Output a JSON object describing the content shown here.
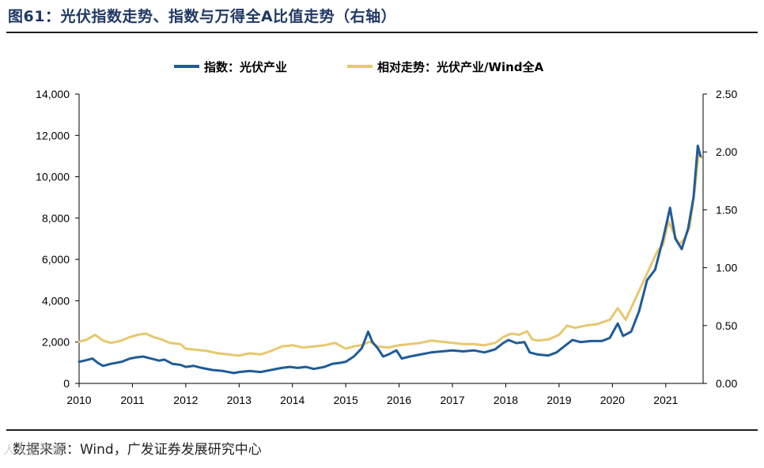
{
  "header": {
    "title": "图61：光伏指数走势、指数与万得全A比值走势（右轴）"
  },
  "footer": {
    "source": "数据来源：Wind，广发证券发展研究中心",
    "watermark": "人人股号查"
  },
  "colors": {
    "series_index": "#1f5c99",
    "series_relative": "#e6c86e",
    "axis": "#000000"
  },
  "chart_data": {
    "type": "line",
    "title": "光伏指数走势、指数与万得全A比值走势（右轴）",
    "legend_position": "top-center",
    "x_range": [
      2010.0,
      2021.7
    ],
    "x_ticks": [
      "2010",
      "2011",
      "2012",
      "2013",
      "2014",
      "2015",
      "2016",
      "2017",
      "2018",
      "2019",
      "2020",
      "2021"
    ],
    "y_left": {
      "range": [
        0,
        14000
      ],
      "ticks": [
        "0",
        "2,000",
        "4,000",
        "6,000",
        "8,000",
        "10,000",
        "12,000",
        "14,000"
      ]
    },
    "y_right": {
      "range": [
        0,
        2.5
      ],
      "ticks": [
        "0.00",
        "0.50",
        "1.00",
        "1.50",
        "2.00",
        "2.50"
      ]
    },
    "series": [
      {
        "name": "指数：光伏产业",
        "axis": "left",
        "points": [
          [
            2010.0,
            1050
          ],
          [
            2010.1,
            1100
          ],
          [
            2010.25,
            1200
          ],
          [
            2010.35,
            1000
          ],
          [
            2010.45,
            850
          ],
          [
            2010.6,
            950
          ],
          [
            2010.8,
            1050
          ],
          [
            2010.95,
            1200
          ],
          [
            2011.05,
            1250
          ],
          [
            2011.2,
            1300
          ],
          [
            2011.35,
            1200
          ],
          [
            2011.5,
            1100
          ],
          [
            2011.6,
            1150
          ],
          [
            2011.75,
            950
          ],
          [
            2011.9,
            900
          ],
          [
            2012.0,
            800
          ],
          [
            2012.15,
            850
          ],
          [
            2012.3,
            750
          ],
          [
            2012.5,
            650
          ],
          [
            2012.7,
            600
          ],
          [
            2012.9,
            500
          ],
          [
            2013.0,
            550
          ],
          [
            2013.2,
            600
          ],
          [
            2013.4,
            550
          ],
          [
            2013.6,
            650
          ],
          [
            2013.8,
            750
          ],
          [
            2013.95,
            800
          ],
          [
            2014.1,
            750
          ],
          [
            2014.25,
            800
          ],
          [
            2014.4,
            700
          ],
          [
            2014.6,
            800
          ],
          [
            2014.75,
            950
          ],
          [
            2014.9,
            1000
          ],
          [
            2015.0,
            1050
          ],
          [
            2015.15,
            1300
          ],
          [
            2015.3,
            1700
          ],
          [
            2015.42,
            2500
          ],
          [
            2015.5,
            2000
          ],
          [
            2015.6,
            1700
          ],
          [
            2015.7,
            1300
          ],
          [
            2015.8,
            1400
          ],
          [
            2015.95,
            1600
          ],
          [
            2016.05,
            1200
          ],
          [
            2016.2,
            1300
          ],
          [
            2016.4,
            1400
          ],
          [
            2016.6,
            1500
          ],
          [
            2016.8,
            1550
          ],
          [
            2017.0,
            1600
          ],
          [
            2017.2,
            1550
          ],
          [
            2017.4,
            1600
          ],
          [
            2017.6,
            1500
          ],
          [
            2017.8,
            1650
          ],
          [
            2017.95,
            1950
          ],
          [
            2018.05,
            2100
          ],
          [
            2018.2,
            1950
          ],
          [
            2018.35,
            2000
          ],
          [
            2018.45,
            1500
          ],
          [
            2018.6,
            1400
          ],
          [
            2018.8,
            1350
          ],
          [
            2018.95,
            1500
          ],
          [
            2019.1,
            1800
          ],
          [
            2019.25,
            2100
          ],
          [
            2019.4,
            2000
          ],
          [
            2019.6,
            2050
          ],
          [
            2019.8,
            2050
          ],
          [
            2019.95,
            2200
          ],
          [
            2020.1,
            2900
          ],
          [
            2020.2,
            2300
          ],
          [
            2020.35,
            2500
          ],
          [
            2020.5,
            3500
          ],
          [
            2020.65,
            5000
          ],
          [
            2020.8,
            5500
          ],
          [
            2020.95,
            7000
          ],
          [
            2021.08,
            8500
          ],
          [
            2021.18,
            7000
          ],
          [
            2021.3,
            6500
          ],
          [
            2021.42,
            7500
          ],
          [
            2021.52,
            9000
          ],
          [
            2021.6,
            11500
          ],
          [
            2021.65,
            11000
          ]
        ]
      },
      {
        "name": "相对走势：光伏产业/Wind全A",
        "axis": "right",
        "points": [
          [
            2010.0,
            0.36
          ],
          [
            2010.15,
            0.38
          ],
          [
            2010.3,
            0.42
          ],
          [
            2010.45,
            0.37
          ],
          [
            2010.6,
            0.35
          ],
          [
            2010.8,
            0.37
          ],
          [
            2010.95,
            0.4
          ],
          [
            2011.1,
            0.42
          ],
          [
            2011.25,
            0.43
          ],
          [
            2011.4,
            0.4
          ],
          [
            2011.55,
            0.38
          ],
          [
            2011.7,
            0.35
          ],
          [
            2011.9,
            0.34
          ],
          [
            2012.0,
            0.3
          ],
          [
            2012.2,
            0.29
          ],
          [
            2012.4,
            0.28
          ],
          [
            2012.6,
            0.26
          ],
          [
            2012.8,
            0.25
          ],
          [
            2013.0,
            0.24
          ],
          [
            2013.2,
            0.26
          ],
          [
            2013.4,
            0.25
          ],
          [
            2013.6,
            0.28
          ],
          [
            2013.8,
            0.32
          ],
          [
            2014.0,
            0.33
          ],
          [
            2014.2,
            0.31
          ],
          [
            2014.4,
            0.32
          ],
          [
            2014.6,
            0.33
          ],
          [
            2014.8,
            0.35
          ],
          [
            2015.0,
            0.3
          ],
          [
            2015.15,
            0.32
          ],
          [
            2015.3,
            0.33
          ],
          [
            2015.45,
            0.36
          ],
          [
            2015.6,
            0.32
          ],
          [
            2015.8,
            0.31
          ],
          [
            2016.0,
            0.33
          ],
          [
            2016.2,
            0.34
          ],
          [
            2016.4,
            0.35
          ],
          [
            2016.6,
            0.37
          ],
          [
            2016.8,
            0.36
          ],
          [
            2017.0,
            0.35
          ],
          [
            2017.2,
            0.34
          ],
          [
            2017.4,
            0.34
          ],
          [
            2017.6,
            0.33
          ],
          [
            2017.8,
            0.35
          ],
          [
            2017.95,
            0.4
          ],
          [
            2018.1,
            0.43
          ],
          [
            2018.25,
            0.42
          ],
          [
            2018.4,
            0.45
          ],
          [
            2018.5,
            0.38
          ],
          [
            2018.6,
            0.37
          ],
          [
            2018.8,
            0.38
          ],
          [
            2019.0,
            0.42
          ],
          [
            2019.15,
            0.5
          ],
          [
            2019.3,
            0.48
          ],
          [
            2019.5,
            0.5
          ],
          [
            2019.7,
            0.51
          ],
          [
            2019.95,
            0.55
          ],
          [
            2020.1,
            0.65
          ],
          [
            2020.25,
            0.55
          ],
          [
            2020.4,
            0.7
          ],
          [
            2020.55,
            0.85
          ],
          [
            2020.7,
            1.0
          ],
          [
            2020.85,
            1.15
          ],
          [
            2020.95,
            1.2
          ],
          [
            2021.05,
            1.4
          ],
          [
            2021.15,
            1.3
          ],
          [
            2021.25,
            1.2
          ],
          [
            2021.35,
            1.25
          ],
          [
            2021.45,
            1.35
          ],
          [
            2021.55,
            1.7
          ],
          [
            2021.62,
            2.0
          ],
          [
            2021.67,
            1.95
          ]
        ]
      }
    ]
  }
}
